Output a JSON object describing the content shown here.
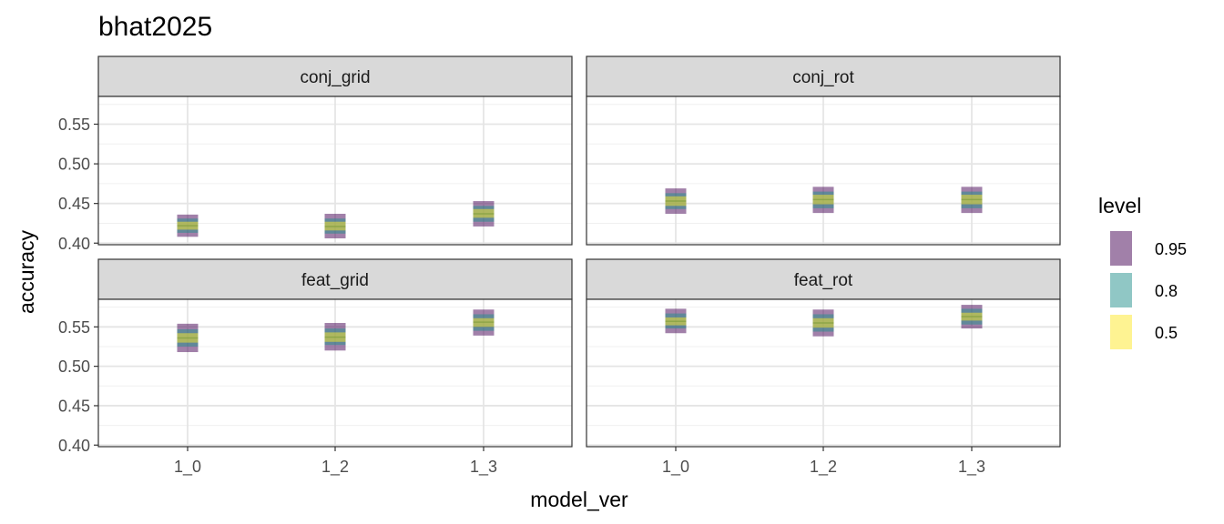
{
  "chart_data": {
    "type": "interval",
    "title": "bhat2025",
    "xlabel": "model_ver",
    "ylabel": "accuracy",
    "x_categories": [
      "1_0",
      "1_2",
      "1_3"
    ],
    "y_ticks": [
      "0.40",
      "0.45",
      "0.50",
      "0.55"
    ],
    "ylim": [
      0.398,
      0.585
    ],
    "grid": true,
    "legend": {
      "title": "level",
      "position": "right",
      "entries": [
        {
          "label": "0.95",
          "color": "#440154",
          "alpha": 0.5
        },
        {
          "label": "0.8",
          "color": "#21908C",
          "alpha": 0.5
        },
        {
          "label": "0.5",
          "color": "#FDE725",
          "alpha": 0.5
        }
      ]
    },
    "panels": [
      {
        "name": "conj_grid",
        "intervals": [
          {
            "x": "1_0",
            "median": 0.422,
            "i95": [
              0.408,
              0.436
            ],
            "i80": [
              0.413,
              0.431
            ],
            "i50": [
              0.417,
              0.427
            ]
          },
          {
            "x": "1_2",
            "median": 0.421,
            "i95": [
              0.406,
              0.437
            ],
            "i80": [
              0.412,
              0.431
            ],
            "i50": [
              0.416,
              0.427
            ]
          },
          {
            "x": "1_3",
            "median": 0.437,
            "i95": [
              0.421,
              0.453
            ],
            "i80": [
              0.427,
              0.447
            ],
            "i50": [
              0.432,
              0.443
            ]
          }
        ]
      },
      {
        "name": "conj_rot",
        "intervals": [
          {
            "x": "1_0",
            "median": 0.453,
            "i95": [
              0.437,
              0.469
            ],
            "i80": [
              0.443,
              0.463
            ],
            "i50": [
              0.447,
              0.459
            ]
          },
          {
            "x": "1_2",
            "median": 0.455,
            "i95": [
              0.438,
              0.471
            ],
            "i80": [
              0.444,
              0.465
            ],
            "i50": [
              0.449,
              0.461
            ]
          },
          {
            "x": "1_3",
            "median": 0.455,
            "i95": [
              0.438,
              0.471
            ],
            "i80": [
              0.444,
              0.465
            ],
            "i50": [
              0.449,
              0.461
            ]
          }
        ]
      },
      {
        "name": "feat_grid",
        "intervals": [
          {
            "x": "1_0",
            "median": 0.536,
            "i95": [
              0.518,
              0.554
            ],
            "i80": [
              0.525,
              0.547
            ],
            "i50": [
              0.53,
              0.542
            ]
          },
          {
            "x": "1_2",
            "median": 0.537,
            "i95": [
              0.52,
              0.555
            ],
            "i80": [
              0.527,
              0.548
            ],
            "i50": [
              0.531,
              0.543
            ]
          },
          {
            "x": "1_3",
            "median": 0.556,
            "i95": [
              0.539,
              0.572
            ],
            "i80": [
              0.545,
              0.566
            ],
            "i50": [
              0.55,
              0.561
            ]
          }
        ]
      },
      {
        "name": "feat_rot",
        "intervals": [
          {
            "x": "1_0",
            "median": 0.557,
            "i95": [
              0.542,
              0.573
            ],
            "i80": [
              0.548,
              0.567
            ],
            "i50": [
              0.552,
              0.562
            ]
          },
          {
            "x": "1_2",
            "median": 0.555,
            "i95": [
              0.538,
              0.572
            ],
            "i80": [
              0.544,
              0.566
            ],
            "i50": [
              0.549,
              0.561
            ]
          },
          {
            "x": "1_3",
            "median": 0.563,
            "i95": [
              0.548,
              0.578
            ],
            "i80": [
              0.553,
              0.573
            ],
            "i50": [
              0.558,
              0.568
            ]
          }
        ]
      }
    ]
  }
}
